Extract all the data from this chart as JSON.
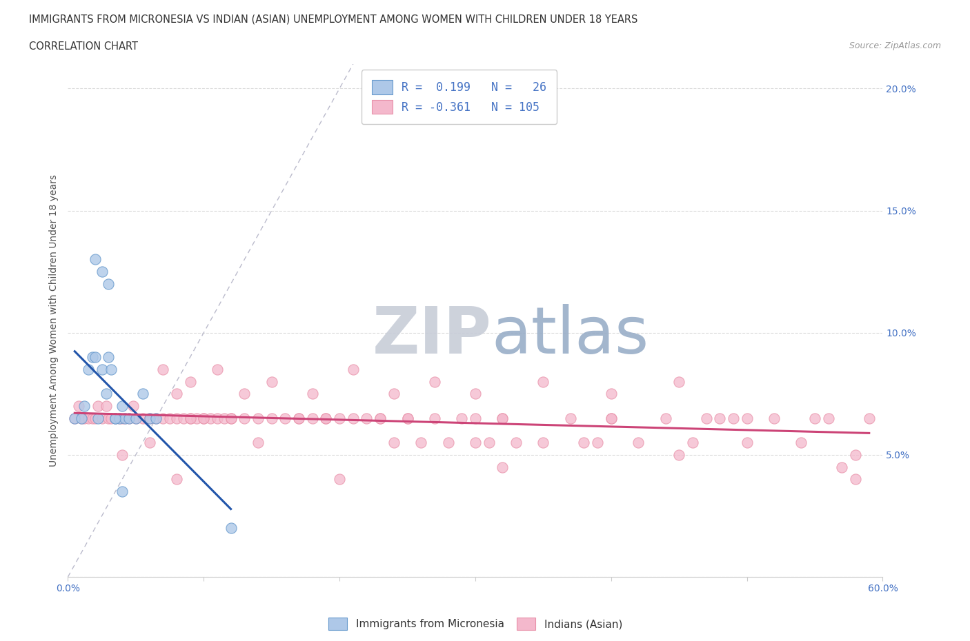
{
  "title": "IMMIGRANTS FROM MICRONESIA VS INDIAN (ASIAN) UNEMPLOYMENT AMONG WOMEN WITH CHILDREN UNDER 18 YEARS",
  "subtitle": "CORRELATION CHART",
  "source": "Source: ZipAtlas.com",
  "ylabel": "Unemployment Among Women with Children Under 18 years",
  "xlim": [
    0.0,
    0.6
  ],
  "ylim": [
    0.0,
    0.21
  ],
  "xticks": [
    0.0,
    0.1,
    0.2,
    0.3,
    0.4,
    0.5,
    0.6
  ],
  "xticklabels": [
    "0.0%",
    "",
    "",
    "",
    "",
    "",
    "60.0%"
  ],
  "yticks": [
    0.0,
    0.05,
    0.1,
    0.15,
    0.2
  ],
  "yticklabels_right": [
    "",
    "5.0%",
    "10.0%",
    "15.0%",
    "20.0%"
  ],
  "blue_color": "#aec8e8",
  "pink_color": "#f4b8cc",
  "blue_edge_color": "#6699cc",
  "pink_edge_color": "#e890a8",
  "blue_line_color": "#2255aa",
  "pink_line_color": "#cc4477",
  "diag_color": "#bbbbcc",
  "watermark_zip": "ZIP",
  "watermark_atlas": "atlas",
  "watermark_color_zip": "#c8cdd8",
  "watermark_color_atlas": "#99aec8",
  "tick_color": "#4472c4",
  "grid_color": "#cccccc",
  "blue_x": [
    0.005,
    0.01,
    0.012,
    0.015,
    0.018,
    0.02,
    0.022,
    0.025,
    0.028,
    0.03,
    0.032,
    0.035,
    0.038,
    0.04,
    0.042,
    0.045,
    0.05,
    0.055,
    0.06,
    0.065,
    0.02,
    0.025,
    0.03,
    0.035,
    0.12,
    0.04
  ],
  "blue_y": [
    0.065,
    0.065,
    0.07,
    0.085,
    0.09,
    0.09,
    0.065,
    0.085,
    0.075,
    0.09,
    0.085,
    0.065,
    0.065,
    0.07,
    0.065,
    0.065,
    0.065,
    0.075,
    0.065,
    0.065,
    0.13,
    0.125,
    0.12,
    0.065,
    0.02,
    0.035
  ],
  "pink_x": [
    0.005,
    0.008,
    0.01,
    0.012,
    0.015,
    0.018,
    0.02,
    0.022,
    0.025,
    0.028,
    0.03,
    0.032,
    0.035,
    0.038,
    0.04,
    0.042,
    0.045,
    0.048,
    0.05,
    0.055,
    0.06,
    0.065,
    0.07,
    0.075,
    0.08,
    0.085,
    0.09,
    0.095,
    0.1,
    0.105,
    0.11,
    0.115,
    0.12,
    0.13,
    0.14,
    0.15,
    0.16,
    0.17,
    0.18,
    0.19,
    0.2,
    0.21,
    0.22,
    0.23,
    0.24,
    0.25,
    0.26,
    0.27,
    0.28,
    0.29,
    0.3,
    0.31,
    0.32,
    0.33,
    0.35,
    0.37,
    0.39,
    0.4,
    0.42,
    0.44,
    0.46,
    0.48,
    0.5,
    0.52,
    0.54,
    0.56,
    0.58,
    0.07,
    0.09,
    0.11,
    0.13,
    0.15,
    0.18,
    0.21,
    0.24,
    0.27,
    0.3,
    0.35,
    0.4,
    0.45,
    0.5,
    0.55,
    0.06,
    0.1,
    0.14,
    0.19,
    0.25,
    0.32,
    0.4,
    0.49,
    0.58,
    0.08,
    0.12,
    0.17,
    0.23,
    0.3,
    0.38,
    0.47,
    0.57,
    0.09,
    0.2,
    0.32,
    0.45,
    0.59,
    0.04,
    0.08
  ],
  "pink_y": [
    0.065,
    0.07,
    0.065,
    0.065,
    0.065,
    0.065,
    0.065,
    0.07,
    0.065,
    0.07,
    0.065,
    0.065,
    0.065,
    0.065,
    0.065,
    0.065,
    0.065,
    0.07,
    0.065,
    0.065,
    0.065,
    0.065,
    0.065,
    0.065,
    0.065,
    0.065,
    0.065,
    0.065,
    0.065,
    0.065,
    0.065,
    0.065,
    0.065,
    0.065,
    0.065,
    0.065,
    0.065,
    0.065,
    0.065,
    0.065,
    0.065,
    0.065,
    0.065,
    0.065,
    0.055,
    0.065,
    0.055,
    0.065,
    0.055,
    0.065,
    0.065,
    0.055,
    0.065,
    0.055,
    0.055,
    0.065,
    0.055,
    0.065,
    0.055,
    0.065,
    0.055,
    0.065,
    0.055,
    0.065,
    0.055,
    0.065,
    0.05,
    0.085,
    0.08,
    0.085,
    0.075,
    0.08,
    0.075,
    0.085,
    0.075,
    0.08,
    0.075,
    0.08,
    0.075,
    0.08,
    0.065,
    0.065,
    0.055,
    0.065,
    0.055,
    0.065,
    0.065,
    0.065,
    0.065,
    0.065,
    0.04,
    0.075,
    0.065,
    0.065,
    0.065,
    0.055,
    0.055,
    0.065,
    0.045,
    0.065,
    0.04,
    0.045,
    0.05,
    0.065,
    0.05,
    0.04
  ]
}
